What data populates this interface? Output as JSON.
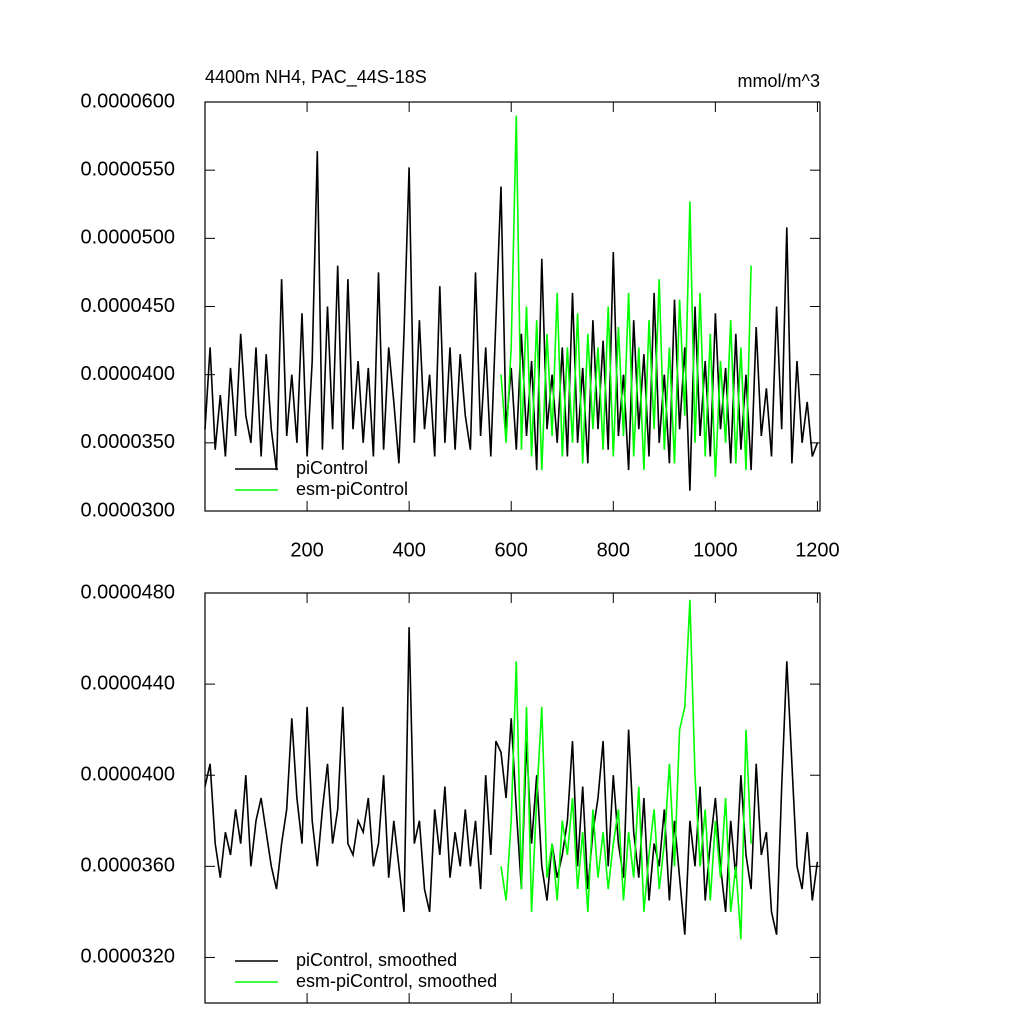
{
  "chart_data": [
    {
      "type": "line",
      "title": "4400m NH4, PAC_44S-18S",
      "units_label": "mmol/m^3",
      "x": [
        0,
        10,
        20,
        30,
        40,
        50,
        60,
        70,
        80,
        90,
        100,
        110,
        120,
        130,
        140,
        150,
        160,
        170,
        180,
        190,
        200,
        210,
        220,
        230,
        240,
        250,
        260,
        270,
        280,
        290,
        300,
        310,
        320,
        330,
        340,
        350,
        360,
        370,
        380,
        390,
        400,
        410,
        420,
        430,
        440,
        450,
        460,
        470,
        480,
        490,
        500,
        510,
        520,
        530,
        540,
        550,
        560,
        570,
        580,
        590,
        600,
        610,
        620,
        630,
        640,
        650,
        660,
        670,
        680,
        690,
        700,
        710,
        720,
        730,
        740,
        750,
        760,
        770,
        780,
        790,
        800,
        810,
        820,
        830,
        840,
        850,
        860,
        870,
        880,
        890,
        900,
        910,
        920,
        930,
        940,
        950,
        960,
        970,
        980,
        990,
        1000,
        1010,
        1020,
        1030,
        1040,
        1050,
        1060,
        1070,
        1080,
        1090,
        1100,
        1110,
        1120,
        1130,
        1140,
        1150,
        1160,
        1170,
        1180,
        1190,
        1200
      ],
      "series": [
        {
          "name": "piControl",
          "color": "#000000",
          "values": [
            3.6e-05,
            4.2e-05,
            3.45e-05,
            3.85e-05,
            3.4e-05,
            4.05e-05,
            3.55e-05,
            4.3e-05,
            3.7e-05,
            3.5e-05,
            4.2e-05,
            3.4e-05,
            4.15e-05,
            3.6e-05,
            3.3e-05,
            4.7e-05,
            3.55e-05,
            4e-05,
            3.5e-05,
            4.45e-05,
            3.4e-05,
            4.1e-05,
            5.64e-05,
            3.45e-05,
            4.5e-05,
            3.6e-05,
            4.8e-05,
            3.45e-05,
            4.7e-05,
            3.6e-05,
            4.1e-05,
            3.5e-05,
            4.05e-05,
            3.4e-05,
            4.75e-05,
            3.45e-05,
            4.2e-05,
            3.8e-05,
            3.35e-05,
            4.3e-05,
            5.52e-05,
            3.5e-05,
            4.4e-05,
            3.6e-05,
            4e-05,
            3.4e-05,
            4.65e-05,
            3.5e-05,
            4.2e-05,
            3.45e-05,
            4.15e-05,
            3.7e-05,
            3.45e-05,
            4.75e-05,
            3.55e-05,
            4.2e-05,
            3.4e-05,
            4.4e-05,
            5.38e-05,
            3.6e-05,
            4.05e-05,
            3.45e-05,
            4.3e-05,
            3.55e-05,
            4.1e-05,
            3.3e-05,
            4.85e-05,
            3.6e-05,
            4e-05,
            3.5e-05,
            4.2e-05,
            3.4e-05,
            4.6e-05,
            3.5e-05,
            4.05e-05,
            3.35e-05,
            4.4e-05,
            3.6e-05,
            4.25e-05,
            3.45e-05,
            4.9e-05,
            3.55e-05,
            4e-05,
            3.3e-05,
            4.4e-05,
            3.6e-05,
            4.15e-05,
            3.4e-05,
            4.6e-05,
            3.5e-05,
            4e-05,
            3.35e-05,
            4.55e-05,
            3.6e-05,
            4.2e-05,
            3.15e-05,
            4.5e-05,
            3.55e-05,
            4.1e-05,
            3.4e-05,
            4.45e-05,
            3.6e-05,
            4.05e-05,
            3.35e-05,
            4.3e-05,
            3.45e-05,
            4e-05,
            3.3e-05,
            4.35e-05,
            3.55e-05,
            3.9e-05,
            3.4e-05,
            4.5e-05,
            3.6e-05,
            5.08e-05,
            3.35e-05,
            4.1e-05,
            3.5e-05,
            3.8e-05,
            3.4e-05,
            3.5e-05
          ]
        },
        {
          "name": "esm-piControl",
          "color": "#00ff00",
          "values": [
            null,
            null,
            null,
            null,
            null,
            null,
            null,
            null,
            null,
            null,
            null,
            null,
            null,
            null,
            null,
            null,
            null,
            null,
            null,
            null,
            null,
            null,
            null,
            null,
            null,
            null,
            null,
            null,
            null,
            null,
            null,
            null,
            null,
            null,
            null,
            null,
            null,
            null,
            null,
            null,
            null,
            null,
            null,
            null,
            null,
            null,
            null,
            null,
            null,
            null,
            null,
            null,
            null,
            null,
            null,
            null,
            null,
            null,
            4e-05,
            3.5e-05,
            4.2e-05,
            5.9e-05,
            3.45e-05,
            4.5e-05,
            3.4e-05,
            4.4e-05,
            3.3e-05,
            4.3e-05,
            3.55e-05,
            4.6e-05,
            3.4e-05,
            4.2e-05,
            3.5e-05,
            4.45e-05,
            3.35e-05,
            4.3e-05,
            3.6e-05,
            4.2e-05,
            3.45e-05,
            4.5e-05,
            3.4e-05,
            4.35e-05,
            3.55e-05,
            4.6e-05,
            3.4e-05,
            4.2e-05,
            3.3e-05,
            4.4e-05,
            3.6e-05,
            4.7e-05,
            3.45e-05,
            4.2e-05,
            3.35e-05,
            4.55e-05,
            3.7e-05,
            5.27e-05,
            3.5e-05,
            4.6e-05,
            3.4e-05,
            4.3e-05,
            3.25e-05,
            4.1e-05,
            3.5e-05,
            4.4e-05,
            3.35e-05,
            4.2e-05,
            3.3e-05,
            4.8e-05,
            null,
            null,
            null,
            null,
            null,
            null,
            null,
            null,
            null,
            null,
            null,
            null,
            null
          ]
        }
      ],
      "xlim": [
        0,
        1205
      ],
      "xticks": [
        200,
        400,
        600,
        800,
        1000,
        1200
      ],
      "ylim": [
        3e-05,
        6e-05
      ],
      "yticks": [
        {
          "value": 3e-05,
          "label": "0.0000300"
        },
        {
          "value": 3.5e-05,
          "label": "0.0000350"
        },
        {
          "value": 4e-05,
          "label": "0.0000400"
        },
        {
          "value": 4.5e-05,
          "label": "0.0000450"
        },
        {
          "value": 5e-05,
          "label": "0.0000500"
        },
        {
          "value": 5.5e-05,
          "label": "0.0000550"
        },
        {
          "value": 6e-05,
          "label": "0.0000600"
        }
      ],
      "legend": "lower-left"
    },
    {
      "type": "line",
      "x": [
        0,
        10,
        20,
        30,
        40,
        50,
        60,
        70,
        80,
        90,
        100,
        110,
        120,
        130,
        140,
        150,
        160,
        170,
        180,
        190,
        200,
        210,
        220,
        230,
        240,
        250,
        260,
        270,
        280,
        290,
        300,
        310,
        320,
        330,
        340,
        350,
        360,
        370,
        380,
        390,
        400,
        410,
        420,
        430,
        440,
        450,
        460,
        470,
        480,
        490,
        500,
        510,
        520,
        530,
        540,
        550,
        560,
        570,
        580,
        590,
        600,
        610,
        620,
        630,
        640,
        650,
        660,
        670,
        680,
        690,
        700,
        710,
        720,
        730,
        740,
        750,
        760,
        770,
        780,
        790,
        800,
        810,
        820,
        830,
        840,
        850,
        860,
        870,
        880,
        890,
        900,
        910,
        920,
        930,
        940,
        950,
        960,
        970,
        980,
        990,
        1000,
        1010,
        1020,
        1030,
        1040,
        1050,
        1060,
        1070,
        1080,
        1090,
        1100,
        1110,
        1120,
        1130,
        1140,
        1150,
        1160,
        1170,
        1180,
        1190,
        1200
      ],
      "series": [
        {
          "name": "piControl, smoothed",
          "color": "#000000",
          "values": [
            3.95e-05,
            4.05e-05,
            3.7e-05,
            3.55e-05,
            3.75e-05,
            3.65e-05,
            3.85e-05,
            3.7e-05,
            4e-05,
            3.6e-05,
            3.8e-05,
            3.9e-05,
            3.75e-05,
            3.6e-05,
            3.5e-05,
            3.7e-05,
            3.85e-05,
            4.25e-05,
            3.9e-05,
            3.7e-05,
            4.3e-05,
            3.8e-05,
            3.6e-05,
            3.85e-05,
            4.05e-05,
            3.7e-05,
            3.85e-05,
            4.3e-05,
            3.7e-05,
            3.65e-05,
            3.8e-05,
            3.75e-05,
            3.9e-05,
            3.6e-05,
            3.7e-05,
            4e-05,
            3.55e-05,
            3.8e-05,
            3.6e-05,
            3.4e-05,
            4.65e-05,
            3.7e-05,
            3.8e-05,
            3.5e-05,
            3.4e-05,
            3.85e-05,
            3.65e-05,
            3.95e-05,
            3.55e-05,
            3.75e-05,
            3.6e-05,
            3.85e-05,
            3.6e-05,
            3.8e-05,
            3.5e-05,
            4e-05,
            3.65e-05,
            4.15e-05,
            4.1e-05,
            3.9e-05,
            4.25e-05,
            3.85e-05,
            3.5e-05,
            4.15e-05,
            3.7e-05,
            4e-05,
            3.6e-05,
            3.45e-05,
            3.7e-05,
            3.55e-05,
            3.65e-05,
            3.8e-05,
            4.15e-05,
            3.6e-05,
            3.95e-05,
            3.5e-05,
            3.75e-05,
            3.9e-05,
            4.15e-05,
            3.6e-05,
            4e-05,
            3.7e-05,
            3.55e-05,
            4.2e-05,
            3.75e-05,
            3.55e-05,
            3.9e-05,
            3.45e-05,
            3.7e-05,
            3.6e-05,
            3.85e-05,
            3.45e-05,
            3.8e-05,
            3.55e-05,
            3.3e-05,
            3.8e-05,
            3.6e-05,
            3.95e-05,
            3.45e-05,
            3.7e-05,
            3.9e-05,
            3.6e-05,
            3.4e-05,
            3.8e-05,
            3.55e-05,
            4e-05,
            3.65e-05,
            3.5e-05,
            4.05e-05,
            3.65e-05,
            3.75e-05,
            3.4e-05,
            3.3e-05,
            3.95e-05,
            4.5e-05,
            4.05e-05,
            3.6e-05,
            3.5e-05,
            3.75e-05,
            3.45e-05,
            3.62e-05
          ]
        },
        {
          "name": "esm-piControl, smoothed",
          "color": "#00ff00",
          "values": [
            null,
            null,
            null,
            null,
            null,
            null,
            null,
            null,
            null,
            null,
            null,
            null,
            null,
            null,
            null,
            null,
            null,
            null,
            null,
            null,
            null,
            null,
            null,
            null,
            null,
            null,
            null,
            null,
            null,
            null,
            null,
            null,
            null,
            null,
            null,
            null,
            null,
            null,
            null,
            null,
            null,
            null,
            null,
            null,
            null,
            null,
            null,
            null,
            null,
            null,
            null,
            null,
            null,
            null,
            null,
            null,
            null,
            null,
            3.6e-05,
            3.45e-05,
            3.8e-05,
            4.5e-05,
            3.5e-05,
            4.3e-05,
            3.4e-05,
            3.9e-05,
            4.3e-05,
            3.55e-05,
            3.7e-05,
            3.45e-05,
            3.8e-05,
            3.65e-05,
            3.9e-05,
            3.5e-05,
            3.75e-05,
            3.4e-05,
            3.85e-05,
            3.55e-05,
            3.75e-05,
            3.5e-05,
            3.7e-05,
            3.85e-05,
            3.45e-05,
            3.75e-05,
            3.55e-05,
            3.95e-05,
            3.4e-05,
            3.65e-05,
            3.85e-05,
            3.5e-05,
            3.7e-05,
            4.05e-05,
            3.6e-05,
            4.2e-05,
            4.3e-05,
            4.77e-05,
            4e-05,
            3.6e-05,
            3.85e-05,
            3.45e-05,
            3.8e-05,
            3.55e-05,
            3.9e-05,
            3.4e-05,
            3.6e-05,
            3.28e-05,
            4.2e-05,
            3.7e-05,
            null,
            null,
            null,
            null,
            null,
            null,
            null,
            null,
            null,
            null,
            null,
            null,
            null
          ]
        }
      ],
      "xlim": [
        0,
        1205
      ],
      "xticks": [
        200,
        400,
        600,
        800,
        1000,
        1200
      ],
      "ylim": [
        3e-05,
        4.8e-05
      ],
      "yticks": [
        {
          "value": 3.2e-05,
          "label": "0.0000320"
        },
        {
          "value": 3.6e-05,
          "label": "0.0000360"
        },
        {
          "value": 4e-05,
          "label": "0.0000400"
        },
        {
          "value": 4.4e-05,
          "label": "0.0000440"
        },
        {
          "value": 4.8e-05,
          "label": "0.0000480"
        }
      ],
      "legend": "lower-left"
    }
  ]
}
